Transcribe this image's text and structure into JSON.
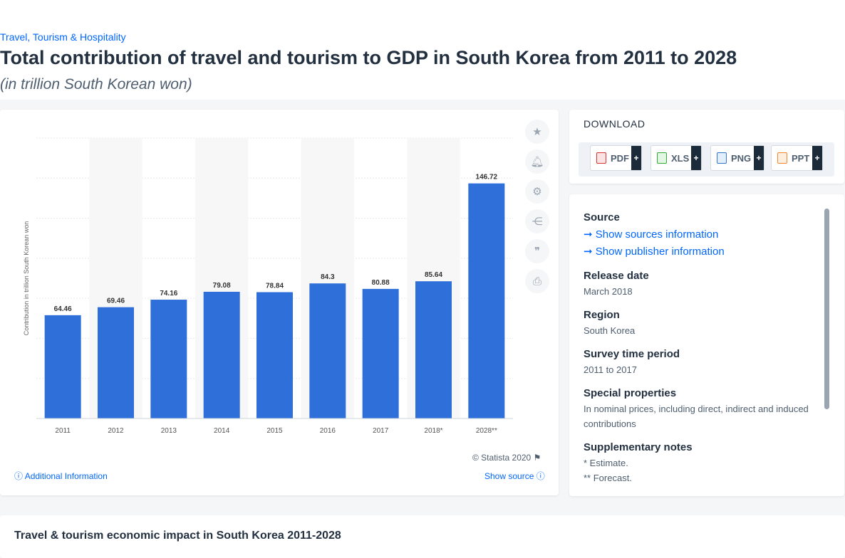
{
  "breadcrumb": "Travel, Tourism & Hospitality",
  "title": "Total contribution of travel and tourism to GDP in South Korea from 2011 to 2028",
  "subtitle": "(in trillion South Korean won)",
  "chart_data": {
    "type": "bar",
    "categories": [
      "2011",
      "2012",
      "2013",
      "2014",
      "2015",
      "2016",
      "2017",
      "2018*",
      "2028**"
    ],
    "values": [
      64.46,
      69.46,
      74.16,
      79.08,
      78.84,
      84.3,
      80.88,
      85.64,
      146.72
    ],
    "value_labels": [
      "64.46",
      "69.46",
      "74.16",
      "79.08",
      "78.84",
      "84.3",
      "80.88",
      "85.64",
      "146.72"
    ],
    "ylabel": "Contribution in trillion South Korean won",
    "ylim": [
      0,
      175
    ],
    "grid": true,
    "bar_color": "#2f6fd9"
  },
  "chart_footer": {
    "copyright": "© Statista 2020",
    "additional_info": "Additional Information",
    "show_source": "Show source"
  },
  "download": {
    "title": "DOWNLOAD",
    "buttons": [
      {
        "label": "PDF",
        "icon": "pdf-icon"
      },
      {
        "label": "XLS",
        "icon": "xls-icon"
      },
      {
        "label": "PNG",
        "icon": "png-icon"
      },
      {
        "label": "PPT",
        "icon": "ppt-icon"
      }
    ]
  },
  "info": {
    "source_label": "Source",
    "show_sources": "Show sources information",
    "show_publisher": "Show publisher information",
    "release_label": "Release date",
    "release_value": "March 2018",
    "region_label": "Region",
    "region_value": "South Korea",
    "survey_label": "Survey time period",
    "survey_value": "2011 to 2017",
    "special_label": "Special properties",
    "special_value": "In nominal prices, including direct, indirect and induced contributions",
    "supp_label": "Supplementary notes",
    "supp_value_1": "* Estimate.",
    "supp_value_2": "** Forecast."
  },
  "bottom": {
    "title": "Travel & tourism economic impact in South Korea 2011-2028"
  }
}
